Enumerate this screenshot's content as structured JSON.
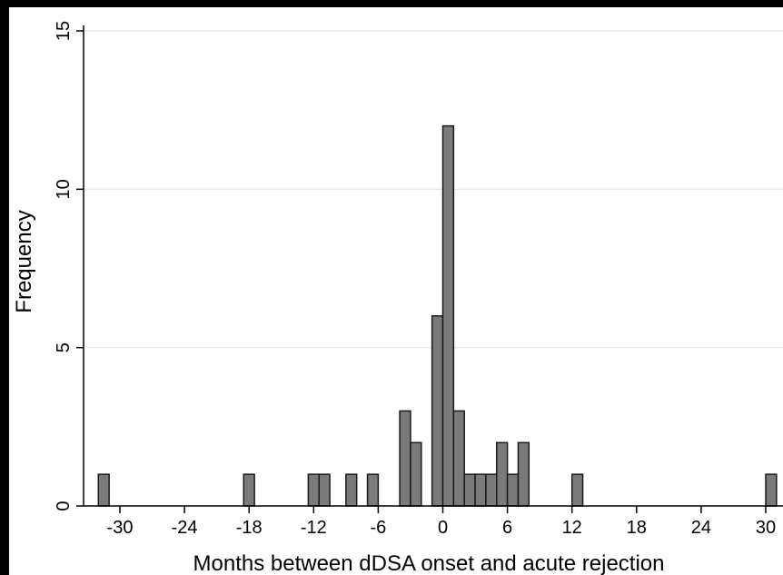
{
  "chart_data": {
    "type": "bar",
    "xlabel": "Months between dDSA onset and acute rejection",
    "ylabel": "Frequency",
    "xlim": [
      -33,
      31.5
    ],
    "ylim": [
      0,
      15
    ],
    "xticks": [
      -30,
      -24,
      -18,
      -12,
      -6,
      0,
      6,
      12,
      18,
      24,
      30
    ],
    "yticks": [
      0,
      5,
      10,
      15
    ],
    "grid": true,
    "bar_width": 1,
    "bars": [
      {
        "x": -31.5,
        "value": 1
      },
      {
        "x": -18.0,
        "value": 1
      },
      {
        "x": -12.0,
        "value": 1
      },
      {
        "x": -11.0,
        "value": 1
      },
      {
        "x": -8.5,
        "value": 1
      },
      {
        "x": -6.5,
        "value": 1
      },
      {
        "x": -3.5,
        "value": 3
      },
      {
        "x": -2.5,
        "value": 2
      },
      {
        "x": -0.5,
        "value": 6
      },
      {
        "x": 0.5,
        "value": 12
      },
      {
        "x": 1.5,
        "value": 3
      },
      {
        "x": 2.5,
        "value": 1
      },
      {
        "x": 3.5,
        "value": 1
      },
      {
        "x": 4.5,
        "value": 1
      },
      {
        "x": 5.5,
        "value": 2
      },
      {
        "x": 6.5,
        "value": 1
      },
      {
        "x": 7.5,
        "value": 2
      },
      {
        "x": 12.5,
        "value": 1
      },
      {
        "x": 30.5,
        "value": 1
      }
    ],
    "colors": {
      "bar_fill": "#7a7a7a",
      "bar_stroke": "#1a1a1a",
      "grid": "#e6e6e6",
      "plot_background": "#ffffff",
      "page_background": "#000000"
    }
  }
}
